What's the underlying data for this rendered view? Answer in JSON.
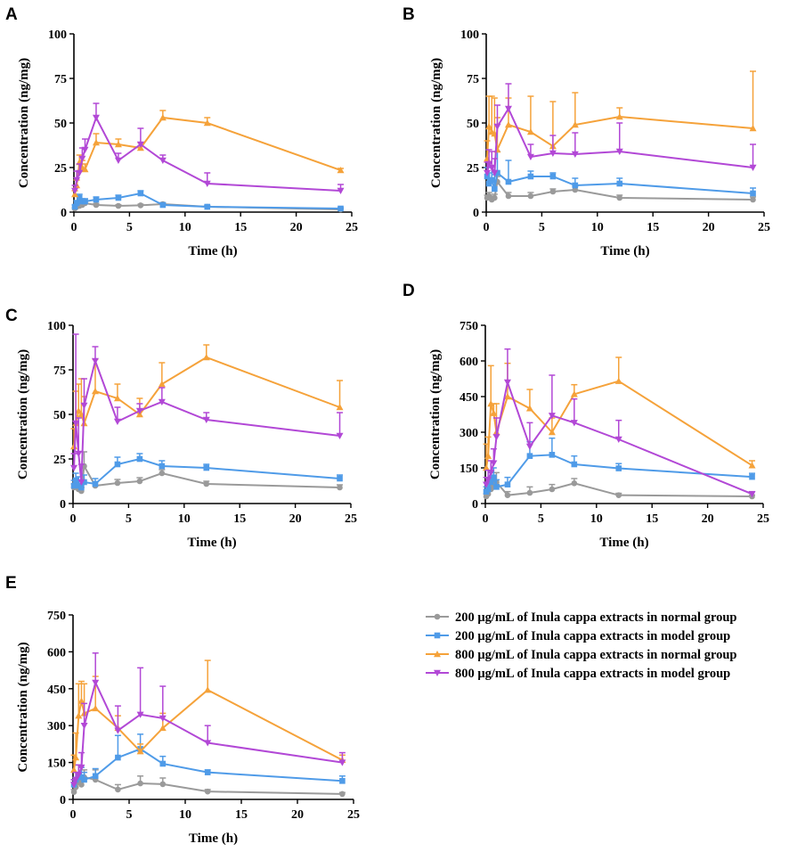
{
  "colors": {
    "gray": "#9a9a9a",
    "blue": "#4f9be8",
    "orange": "#f5a23a",
    "purple": "#b248d6"
  },
  "legend": {
    "items": [
      {
        "label": "200 μg/mL of Inula cappa extracts in normal group",
        "color": "#9a9a9a",
        "marker": "circle"
      },
      {
        "label": "200 μg/mL of Inula cappa extracts in model group",
        "color": "#4f9be8",
        "marker": "square"
      },
      {
        "label": "800 μg/mL of Inula cappa extracts in normal group",
        "color": "#f5a23a",
        "marker": "triangle-up"
      },
      {
        "label": "800 μg/mL of Inula cappa extracts in model group",
        "color": "#b248d6",
        "marker": "triangle-down"
      }
    ]
  },
  "chart_data": [
    {
      "panel": "A",
      "type": "line",
      "xlabel": "Time (h)",
      "ylabel": "Concentration (ng/mg)",
      "xlim": [
        0,
        25
      ],
      "ylim": [
        0,
        100
      ],
      "xticks": [
        0,
        5,
        10,
        15,
        20,
        25
      ],
      "yticks": [
        0,
        25,
        50,
        75,
        100
      ],
      "series": [
        {
          "name": "200 μg/mL of Inula cappa extracts in normal group",
          "marker": "circle",
          "color": "#9a9a9a",
          "x": [
            0.083,
            0.25,
            0.5,
            0.75,
            1,
            2,
            4,
            6,
            8,
            12,
            24
          ],
          "y": [
            2,
            3,
            3.5,
            4,
            5,
            4,
            3.5,
            3.8,
            4.5,
            3,
            1.5
          ],
          "err": [
            0.5,
            0.6,
            0.8,
            1,
            1,
            0.8,
            0.6,
            0.6,
            0.8,
            0.5,
            0.4
          ]
        },
        {
          "name": "200 μg/mL of Inula cappa extracts in model group",
          "marker": "square",
          "color": "#4f9be8",
          "x": [
            0.083,
            0.25,
            0.5,
            0.75,
            1,
            2,
            4,
            6,
            8,
            12,
            24
          ],
          "y": [
            3,
            5,
            8,
            6,
            6,
            7,
            8,
            10.5,
            4,
            3,
            2
          ],
          "err": [
            1,
            1.5,
            2,
            1.5,
            1.5,
            1.5,
            1.5,
            1.5,
            1,
            0.8,
            0.5
          ]
        },
        {
          "name": "800 μg/mL of Inula cappa extracts in normal group",
          "marker": "triangle-up",
          "color": "#f5a23a",
          "x": [
            0.083,
            0.25,
            0.5,
            0.75,
            1,
            2,
            4,
            6,
            8,
            12,
            24
          ],
          "y": [
            10,
            15,
            28,
            25,
            24,
            39,
            38,
            36,
            53,
            50,
            23.5
          ],
          "err": [
            2,
            3,
            4,
            4,
            3,
            5,
            3,
            3,
            4,
            3,
            1
          ]
        },
        {
          "name": "800 μg/mL of Inula cappa extracts in model group",
          "marker": "triangle-down",
          "color": "#b248d6",
          "x": [
            0.083,
            0.25,
            0.5,
            0.75,
            1,
            2,
            4,
            6,
            8,
            12,
            24
          ],
          "y": [
            12,
            18,
            22,
            30,
            35,
            53,
            29,
            38,
            29,
            16,
            12
          ],
          "err": [
            3,
            5,
            5,
            6,
            6,
            8,
            4,
            9,
            3,
            6,
            3.5
          ]
        }
      ]
    },
    {
      "panel": "B",
      "type": "line",
      "xlabel": "Time (h)",
      "ylabel": "Concentration (ng/mg)",
      "xlim": [
        0,
        25
      ],
      "ylim": [
        0,
        100
      ],
      "xticks": [
        0,
        5,
        10,
        15,
        20,
        25
      ],
      "yticks": [
        0,
        25,
        50,
        75,
        100
      ],
      "series": [
        {
          "name": "200 μg/mL of Inula cappa extracts in normal group",
          "marker": "circle",
          "color": "#9a9a9a",
          "x": [
            0.083,
            0.25,
            0.5,
            0.75,
            1,
            2,
            4,
            6,
            8,
            12,
            24
          ],
          "y": [
            8,
            9,
            7,
            8,
            17,
            9,
            9,
            11.5,
            12.5,
            8,
            7
          ],
          "err": [
            1.5,
            2,
            2,
            2,
            3,
            2,
            2,
            1.5,
            2,
            1.5,
            1.5
          ]
        },
        {
          "name": "200 μg/mL of Inula cappa extracts in model group",
          "marker": "square",
          "color": "#4f9be8",
          "x": [
            0.083,
            0.25,
            0.5,
            0.75,
            1,
            2,
            4,
            6,
            8,
            12,
            24
          ],
          "y": [
            20,
            16,
            18,
            13,
            22,
            17,
            20,
            20,
            15,
            16,
            10.5
          ],
          "err": [
            5,
            6,
            8,
            8,
            12,
            12,
            3,
            2,
            4,
            3,
            3
          ]
        },
        {
          "name": "800 μg/mL of Inula cappa extracts in normal group",
          "marker": "triangle-up",
          "color": "#f5a23a",
          "x": [
            0.083,
            0.25,
            0.5,
            0.75,
            1,
            2,
            4,
            6,
            8,
            12,
            24
          ],
          "y": [
            30,
            48,
            45,
            44,
            35,
            49,
            45,
            37,
            49,
            53.5,
            47
          ],
          "err": [
            10,
            17,
            20,
            20,
            18,
            15,
            20,
            25,
            18,
            5,
            32
          ]
        },
        {
          "name": "800 μg/mL of Inula cappa extracts in model group",
          "marker": "triangle-down",
          "color": "#b248d6",
          "x": [
            0.083,
            0.25,
            0.5,
            0.75,
            1,
            2,
            4,
            6,
            8,
            12,
            24
          ],
          "y": [
            22,
            27,
            25,
            22,
            48,
            58,
            31,
            33,
            32.5,
            34,
            25
          ],
          "err": [
            6,
            8,
            9,
            8,
            12,
            14,
            7,
            10,
            12,
            16,
            13
          ]
        }
      ]
    },
    {
      "panel": "C",
      "type": "line",
      "xlabel": "Time (h)",
      "ylabel": "Concentration (ng/mg)",
      "xlim": [
        0,
        25
      ],
      "ylim": [
        0,
        100
      ],
      "xticks": [
        0,
        5,
        10,
        15,
        20,
        25
      ],
      "yticks": [
        0,
        25,
        50,
        75,
        100
      ],
      "series": [
        {
          "name": "200 μg/mL of Inula cappa extracts in normal group",
          "marker": "circle",
          "color": "#9a9a9a",
          "x": [
            0.083,
            0.25,
            0.5,
            0.75,
            1,
            2,
            4,
            6,
            8,
            12,
            24
          ],
          "y": [
            9,
            10,
            8,
            7,
            21,
            10,
            11.5,
            12.5,
            17,
            11,
            9
          ],
          "err": [
            2,
            2,
            2,
            2,
            8,
            2,
            2,
            2,
            2,
            1.5,
            1.5
          ]
        },
        {
          "name": "200 μg/mL of Inula cappa extracts in model group",
          "marker": "square",
          "color": "#4f9be8",
          "x": [
            0.083,
            0.25,
            0.5,
            0.75,
            1,
            2,
            4,
            6,
            8,
            12,
            24
          ],
          "y": [
            10,
            13,
            10,
            9,
            12,
            11,
            22,
            25,
            21,
            20,
            14
          ],
          "err": [
            3,
            4,
            5,
            4,
            4,
            3,
            4,
            3,
            3,
            2,
            2
          ]
        },
        {
          "name": "800 μg/mL of Inula cappa extracts in normal group",
          "marker": "triangle-up",
          "color": "#f5a23a",
          "x": [
            0.083,
            0.25,
            0.5,
            0.75,
            1,
            2,
            4,
            6,
            8,
            12,
            24
          ],
          "y": [
            32,
            45,
            52,
            50,
            45,
            63,
            59,
            50,
            67,
            82,
            54
          ],
          "err": [
            10,
            18,
            15,
            20,
            15,
            18,
            8,
            9,
            12,
            7,
            15
          ]
        },
        {
          "name": "800 μg/mL of Inula cappa extracts in model group",
          "marker": "triangle-down",
          "color": "#b248d6",
          "x": [
            0.083,
            0.25,
            0.5,
            0.75,
            1,
            2,
            4,
            6,
            8,
            12,
            24
          ],
          "y": [
            20,
            45,
            28,
            12,
            55,
            80,
            46,
            52,
            57,
            47,
            38
          ],
          "err": [
            8,
            50,
            20,
            10,
            15,
            8,
            8,
            4,
            8,
            4,
            13
          ]
        }
      ]
    },
    {
      "panel": "D",
      "type": "line",
      "xlabel": "Time (h)",
      "ylabel": "Concentration (ng/mg)",
      "xlim": [
        0,
        25
      ],
      "ylim": [
        0,
        750
      ],
      "xticks": [
        0,
        5,
        10,
        15,
        20,
        25
      ],
      "yticks": [
        0,
        150,
        300,
        450,
        600,
        750
      ],
      "series": [
        {
          "name": "200 μg/mL of Inula cappa extracts in normal group",
          "marker": "circle",
          "color": "#9a9a9a",
          "x": [
            0.083,
            0.25,
            0.5,
            0.75,
            1,
            2,
            4,
            6,
            8,
            12,
            24
          ],
          "y": [
            30,
            40,
            60,
            70,
            90,
            35,
            45,
            60,
            85,
            35,
            30
          ],
          "err": [
            10,
            15,
            20,
            30,
            40,
            15,
            25,
            20,
            20,
            8,
            6
          ]
        },
        {
          "name": "200 μg/mL of Inula cappa extracts in model group",
          "marker": "square",
          "color": "#4f9be8",
          "x": [
            0.083,
            0.25,
            0.5,
            0.75,
            1,
            2,
            4,
            6,
            8,
            12,
            24
          ],
          "y": [
            50,
            60,
            90,
            110,
            70,
            80,
            200,
            205,
            165,
            148,
            112
          ],
          "err": [
            20,
            30,
            40,
            40,
            30,
            30,
            60,
            70,
            35,
            20,
            15
          ]
        },
        {
          "name": "800 μg/mL of Inula cappa extracts in normal group",
          "marker": "triangle-up",
          "color": "#f5a23a",
          "x": [
            0.083,
            0.25,
            0.5,
            0.75,
            1,
            2,
            4,
            6,
            8,
            12,
            24
          ],
          "y": [
            150,
            200,
            420,
            380,
            300,
            450,
            400,
            300,
            460,
            515,
            160
          ],
          "err": [
            100,
            80,
            160,
            40,
            120,
            140,
            80,
            60,
            40,
            100,
            20
          ]
        },
        {
          "name": "800 μg/mL of Inula cappa extracts in model group",
          "marker": "triangle-down",
          "color": "#b248d6",
          "x": [
            0.083,
            0.25,
            0.5,
            0.75,
            1,
            2,
            4,
            6,
            8,
            12,
            24
          ],
          "y": [
            80,
            100,
            130,
            170,
            280,
            510,
            240,
            370,
            340,
            270,
            40
          ],
          "err": [
            30,
            40,
            50,
            60,
            80,
            140,
            100,
            170,
            100,
            80,
            10
          ]
        }
      ]
    },
    {
      "panel": "E",
      "type": "line",
      "xlabel": "Time (h)",
      "ylabel": "Concentration (ng/mg)",
      "xlim": [
        0,
        25
      ],
      "ylim": [
        0,
        750
      ],
      "xticks": [
        0,
        5,
        10,
        15,
        20,
        25
      ],
      "yticks": [
        0,
        150,
        300,
        450,
        600,
        750
      ],
      "series": [
        {
          "name": "200 μg/mL of Inula cappa extracts in normal group",
          "marker": "circle",
          "color": "#9a9a9a",
          "x": [
            0.083,
            0.25,
            0.5,
            0.75,
            1,
            2,
            4,
            6,
            8,
            12,
            24
          ],
          "y": [
            30,
            50,
            70,
            60,
            90,
            80,
            40,
            65,
            62,
            32,
            22
          ],
          "err": [
            10,
            15,
            20,
            20,
            30,
            40,
            20,
            30,
            25,
            8,
            6
          ]
        },
        {
          "name": "200 μg/mL of Inula cappa extracts in model group",
          "marker": "square",
          "color": "#4f9be8",
          "x": [
            0.083,
            0.25,
            0.5,
            0.75,
            1,
            2,
            4,
            6,
            8,
            12,
            24
          ],
          "y": [
            60,
            80,
            100,
            90,
            80,
            95,
            170,
            205,
            145,
            110,
            75
          ],
          "err": [
            20,
            30,
            40,
            40,
            30,
            30,
            90,
            60,
            30,
            10,
            20
          ]
        },
        {
          "name": "800 μg/mL of Inula cappa extracts in normal group",
          "marker": "triangle-up",
          "color": "#f5a23a",
          "x": [
            0.083,
            0.25,
            0.5,
            0.75,
            1,
            2,
            4,
            6,
            8,
            12,
            24
          ],
          "y": [
            120,
            170,
            340,
            400,
            350,
            370,
            290,
            195,
            290,
            445,
            160
          ],
          "err": [
            60,
            100,
            130,
            80,
            120,
            130,
            50,
            30,
            60,
            120,
            20
          ]
        },
        {
          "name": "800 μg/mL of Inula cappa extracts in model group",
          "marker": "triangle-down",
          "color": "#b248d6",
          "x": [
            0.083,
            0.25,
            0.5,
            0.75,
            1,
            2,
            4,
            6,
            8,
            12,
            24
          ],
          "y": [
            60,
            80,
            100,
            130,
            300,
            475,
            280,
            345,
            330,
            230,
            150
          ],
          "err": [
            20,
            30,
            40,
            60,
            90,
            120,
            100,
            190,
            130,
            70,
            40
          ]
        }
      ]
    }
  ]
}
